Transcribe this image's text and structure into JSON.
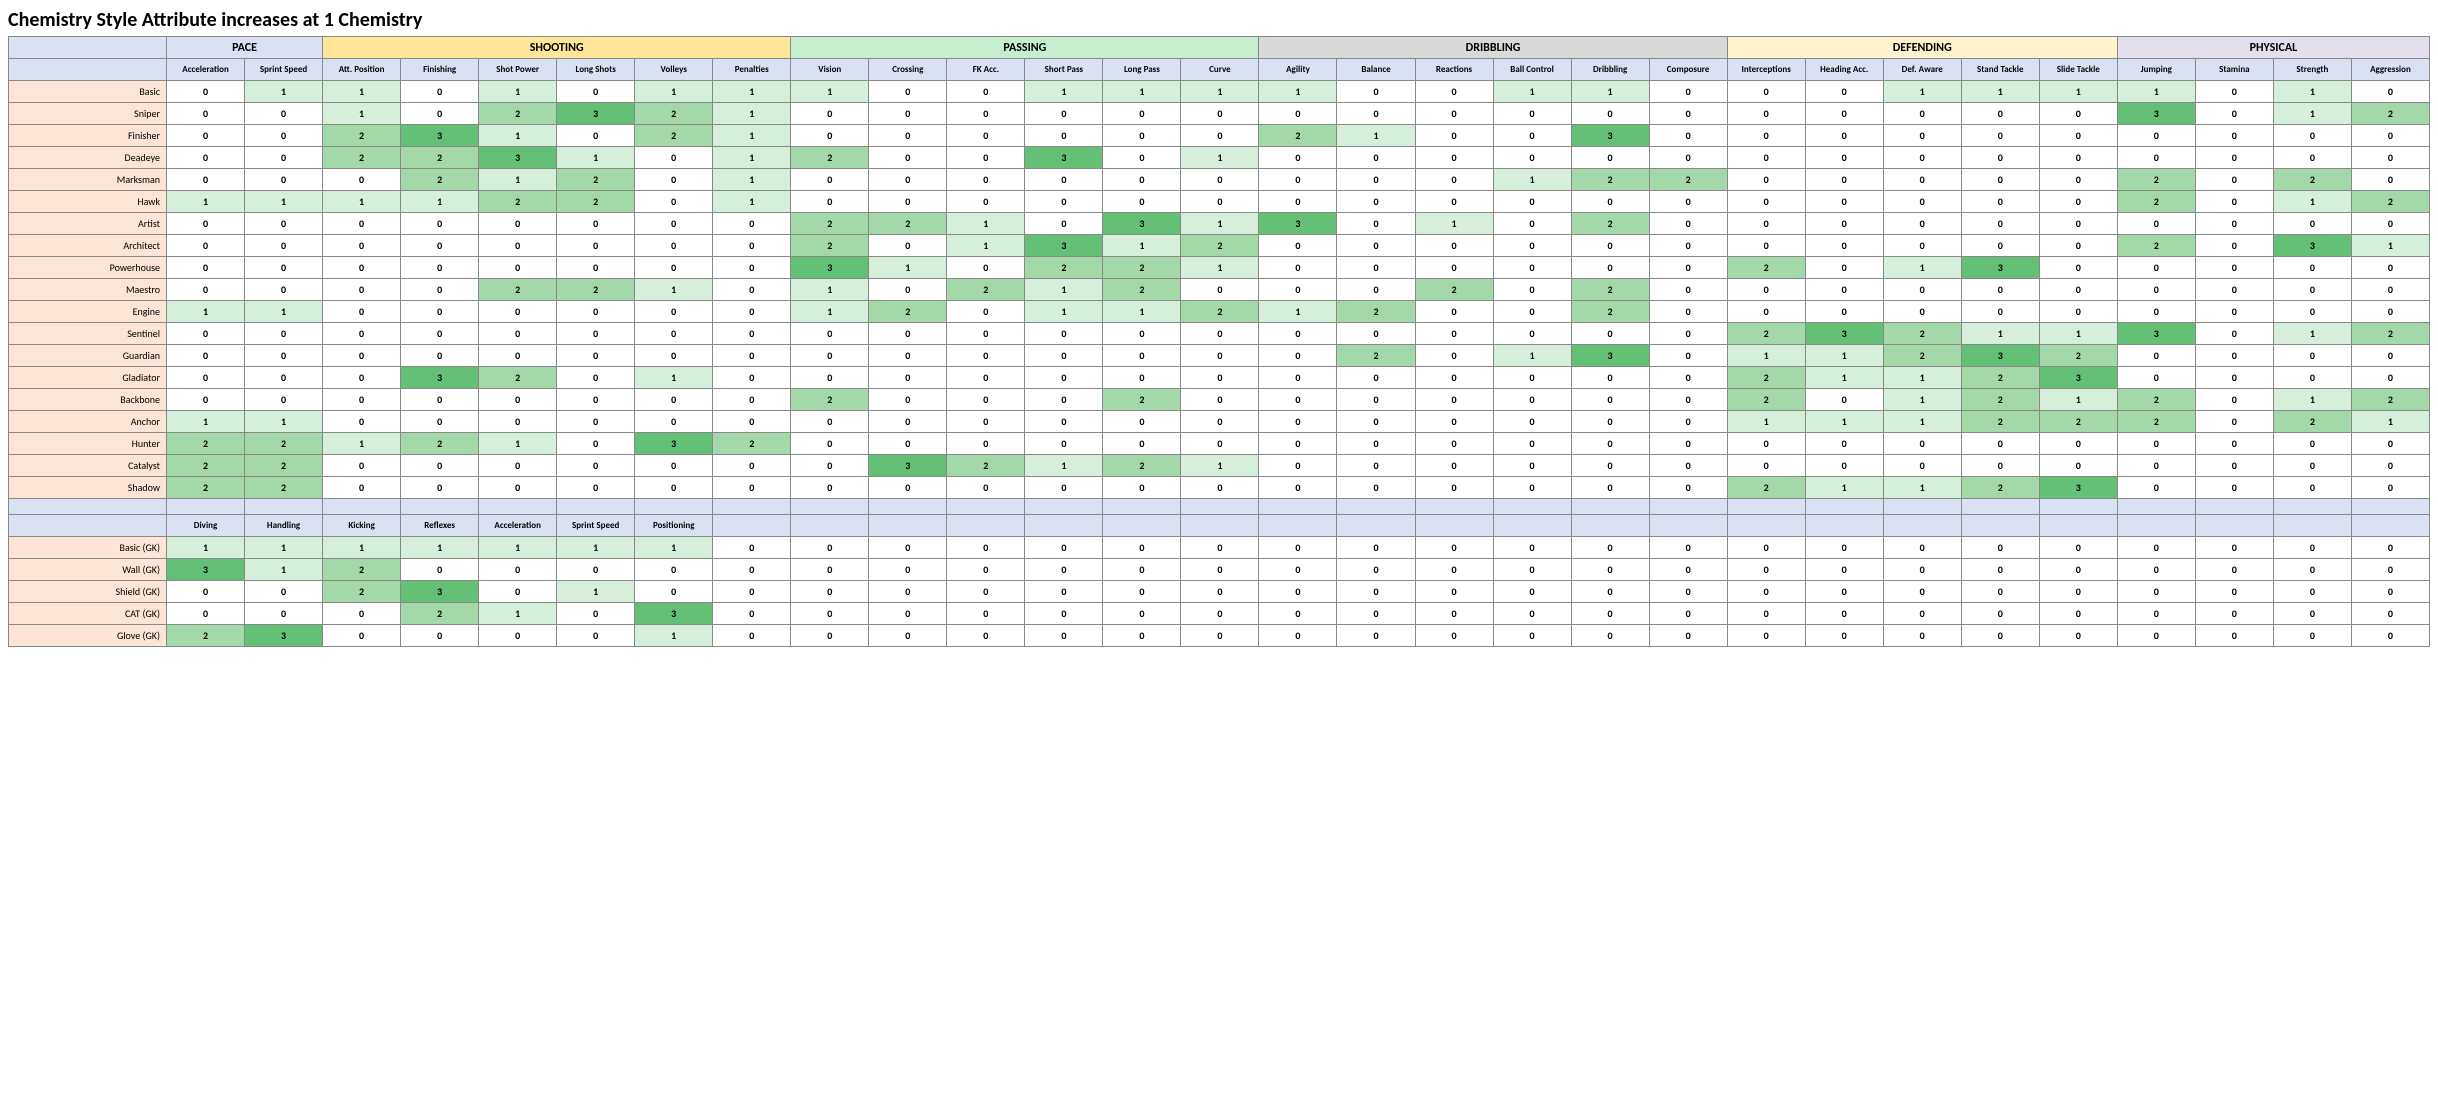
{
  "title": "Chemistry Style Attribute increases at 1 Chemistry",
  "groups": [
    {
      "name": "PACE",
      "span": 2,
      "color": "#d9e1f2",
      "subs": [
        "Acceleration",
        "Sprint Speed"
      ]
    },
    {
      "name": "SHOOTING",
      "span": 6,
      "color": "#ffe699",
      "subs": [
        "Att. Position",
        "Finishing",
        "Shot Power",
        "Long Shots",
        "Volleys",
        "Penalties"
      ]
    },
    {
      "name": "PASSING",
      "span": 6,
      "color": "#c6efce",
      "subs": [
        "Vision",
        "Crossing",
        "FK Acc.",
        "Short Pass",
        "Long Pass",
        "Curve"
      ]
    },
    {
      "name": "DRIBBLING",
      "span": 6,
      "color": "#d9d9d9",
      "subs": [
        "Agility",
        "Balance",
        "Reactions",
        "Ball Control",
        "Dribbling",
        "Composure"
      ]
    },
    {
      "name": "DEFENDING",
      "span": 5,
      "color": "#fff2cc",
      "subs": [
        "Interceptions",
        "Heading Acc.",
        "Def. Aware",
        "Stand Tackle",
        "Slide Tackle"
      ]
    },
    {
      "name": "PHYSICAL",
      "span": 4,
      "color": "#e4dfec",
      "subs": [
        "Jumping",
        "Stamina",
        "Strength",
        "Aggression"
      ]
    }
  ],
  "gk_subs": [
    "Diving",
    "Handling",
    "Kicking",
    "Reflexes",
    "Acceleration",
    "Sprint Speed",
    "Positioning"
  ],
  "row_label_color": "#fce4d6",
  "sub_header_color": "#d9e1f2",
  "heat": {
    "0": "#ffffff",
    "1": "#d5efda",
    "2": "#a3d9a9",
    "3": "#63c075"
  },
  "rows": [
    {
      "name": "Basic",
      "v": [
        0,
        1,
        1,
        0,
        1,
        0,
        1,
        1,
        1,
        0,
        0,
        1,
        1,
        1,
        1,
        0,
        0,
        1,
        1,
        0,
        0,
        0,
        1,
        1,
        1,
        1,
        0,
        1,
        0
      ]
    },
    {
      "name": "Sniper",
      "v": [
        0,
        0,
        1,
        0,
        2,
        3,
        2,
        1,
        0,
        0,
        0,
        0,
        0,
        0,
        0,
        0,
        0,
        0,
        0,
        0,
        0,
        0,
        0,
        0,
        0,
        3,
        0,
        1,
        2
      ]
    },
    {
      "name": "Finisher",
      "v": [
        0,
        0,
        2,
        3,
        1,
        0,
        2,
        1,
        0,
        0,
        0,
        0,
        0,
        0,
        2,
        1,
        0,
        0,
        3,
        0,
        0,
        0,
        0,
        0,
        0,
        0,
        0,
        0,
        0
      ]
    },
    {
      "name": "Deadeye",
      "v": [
        0,
        0,
        2,
        2,
        3,
        1,
        0,
        1,
        2,
        0,
        0,
        3,
        0,
        1,
        0,
        0,
        0,
        0,
        0,
        0,
        0,
        0,
        0,
        0,
        0,
        0,
        0,
        0,
        0
      ]
    },
    {
      "name": "Marksman",
      "v": [
        0,
        0,
        0,
        2,
        1,
        2,
        0,
        1,
        0,
        0,
        0,
        0,
        0,
        0,
        0,
        0,
        0,
        1,
        2,
        2,
        0,
        0,
        0,
        0,
        0,
        2,
        0,
        2,
        0
      ]
    },
    {
      "name": "Hawk",
      "v": [
        1,
        1,
        1,
        1,
        2,
        2,
        0,
        1,
        0,
        0,
        0,
        0,
        0,
        0,
        0,
        0,
        0,
        0,
        0,
        0,
        0,
        0,
        0,
        0,
        0,
        2,
        0,
        1,
        2
      ]
    },
    {
      "name": "Artist",
      "v": [
        0,
        0,
        0,
        0,
        0,
        0,
        0,
        0,
        2,
        2,
        1,
        0,
        3,
        1,
        3,
        0,
        1,
        0,
        2,
        0,
        0,
        0,
        0,
        0,
        0,
        0,
        0,
        0,
        0
      ]
    },
    {
      "name": "Architect",
      "v": [
        0,
        0,
        0,
        0,
        0,
        0,
        0,
        0,
        2,
        0,
        1,
        3,
        1,
        2,
        0,
        0,
        0,
        0,
        0,
        0,
        0,
        0,
        0,
        0,
        0,
        2,
        0,
        3,
        1
      ]
    },
    {
      "name": "Powerhouse",
      "v": [
        0,
        0,
        0,
        0,
        0,
        0,
        0,
        0,
        3,
        1,
        0,
        2,
        2,
        1,
        0,
        0,
        0,
        0,
        0,
        0,
        2,
        0,
        1,
        3,
        0,
        0,
        0,
        0,
        0
      ]
    },
    {
      "name": "Maestro",
      "v": [
        0,
        0,
        0,
        0,
        2,
        2,
        1,
        0,
        1,
        0,
        2,
        1,
        2,
        0,
        0,
        0,
        2,
        0,
        2,
        0,
        0,
        0,
        0,
        0,
        0,
        0,
        0,
        0,
        0
      ]
    },
    {
      "name": "Engine",
      "v": [
        1,
        1,
        0,
        0,
        0,
        0,
        0,
        0,
        1,
        2,
        0,
        1,
        1,
        2,
        1,
        2,
        0,
        0,
        2,
        0,
        0,
        0,
        0,
        0,
        0,
        0,
        0,
        0,
        0
      ]
    },
    {
      "name": "Sentinel",
      "v": [
        0,
        0,
        0,
        0,
        0,
        0,
        0,
        0,
        0,
        0,
        0,
        0,
        0,
        0,
        0,
        0,
        0,
        0,
        0,
        0,
        2,
        3,
        2,
        1,
        1,
        3,
        0,
        1,
        2
      ]
    },
    {
      "name": "Guardian",
      "v": [
        0,
        0,
        0,
        0,
        0,
        0,
        0,
        0,
        0,
        0,
        0,
        0,
        0,
        0,
        0,
        2,
        0,
        1,
        3,
        0,
        1,
        1,
        2,
        3,
        2,
        0,
        0,
        0,
        0
      ]
    },
    {
      "name": "Gladiator",
      "v": [
        0,
        0,
        0,
        3,
        2,
        0,
        1,
        0,
        0,
        0,
        0,
        0,
        0,
        0,
        0,
        0,
        0,
        0,
        0,
        0,
        2,
        1,
        1,
        2,
        3,
        0,
        0,
        0,
        0
      ]
    },
    {
      "name": "Backbone",
      "v": [
        0,
        0,
        0,
        0,
        0,
        0,
        0,
        0,
        2,
        0,
        0,
        0,
        2,
        0,
        0,
        0,
        0,
        0,
        0,
        0,
        2,
        0,
        1,
        2,
        1,
        2,
        0,
        1,
        2
      ]
    },
    {
      "name": "Anchor",
      "v": [
        1,
        1,
        0,
        0,
        0,
        0,
        0,
        0,
        0,
        0,
        0,
        0,
        0,
        0,
        0,
        0,
        0,
        0,
        0,
        0,
        1,
        1,
        1,
        2,
        2,
        2,
        0,
        2,
        1
      ]
    },
    {
      "name": "Hunter",
      "v": [
        2,
        2,
        1,
        2,
        1,
        0,
        3,
        2,
        0,
        0,
        0,
        0,
        0,
        0,
        0,
        0,
        0,
        0,
        0,
        0,
        0,
        0,
        0,
        0,
        0,
        0,
        0,
        0,
        0
      ]
    },
    {
      "name": "Catalyst",
      "v": [
        2,
        2,
        0,
        0,
        0,
        0,
        0,
        0,
        0,
        3,
        2,
        1,
        2,
        1,
        0,
        0,
        0,
        0,
        0,
        0,
        0,
        0,
        0,
        0,
        0,
        0,
        0,
        0,
        0
      ]
    },
    {
      "name": "Shadow",
      "v": [
        2,
        2,
        0,
        0,
        0,
        0,
        0,
        0,
        0,
        0,
        0,
        0,
        0,
        0,
        0,
        0,
        0,
        0,
        0,
        0,
        2,
        1,
        1,
        2,
        3,
        0,
        0,
        0,
        0
      ]
    }
  ],
  "gk_rows": [
    {
      "name": "Basic (GK)",
      "v": [
        1,
        1,
        1,
        1,
        1,
        1,
        1,
        0,
        0,
        0,
        0,
        0,
        0,
        0,
        0,
        0,
        0,
        0,
        0,
        0,
        0,
        0,
        0,
        0,
        0,
        0,
        0,
        0,
        0
      ]
    },
    {
      "name": "Wall (GK)",
      "v": [
        3,
        1,
        2,
        0,
        0,
        0,
        0,
        0,
        0,
        0,
        0,
        0,
        0,
        0,
        0,
        0,
        0,
        0,
        0,
        0,
        0,
        0,
        0,
        0,
        0,
        0,
        0,
        0,
        0
      ]
    },
    {
      "name": "Shield (GK)",
      "v": [
        0,
        0,
        2,
        3,
        0,
        1,
        0,
        0,
        0,
        0,
        0,
        0,
        0,
        0,
        0,
        0,
        0,
        0,
        0,
        0,
        0,
        0,
        0,
        0,
        0,
        0,
        0,
        0,
        0
      ]
    },
    {
      "name": "CAT (GK)",
      "v": [
        0,
        0,
        0,
        2,
        1,
        0,
        3,
        0,
        0,
        0,
        0,
        0,
        0,
        0,
        0,
        0,
        0,
        0,
        0,
        0,
        0,
        0,
        0,
        0,
        0,
        0,
        0,
        0,
        0
      ]
    },
    {
      "name": "Glove (GK)",
      "v": [
        2,
        3,
        0,
        0,
        0,
        0,
        1,
        0,
        0,
        0,
        0,
        0,
        0,
        0,
        0,
        0,
        0,
        0,
        0,
        0,
        0,
        0,
        0,
        0,
        0,
        0,
        0,
        0,
        0
      ]
    }
  ]
}
